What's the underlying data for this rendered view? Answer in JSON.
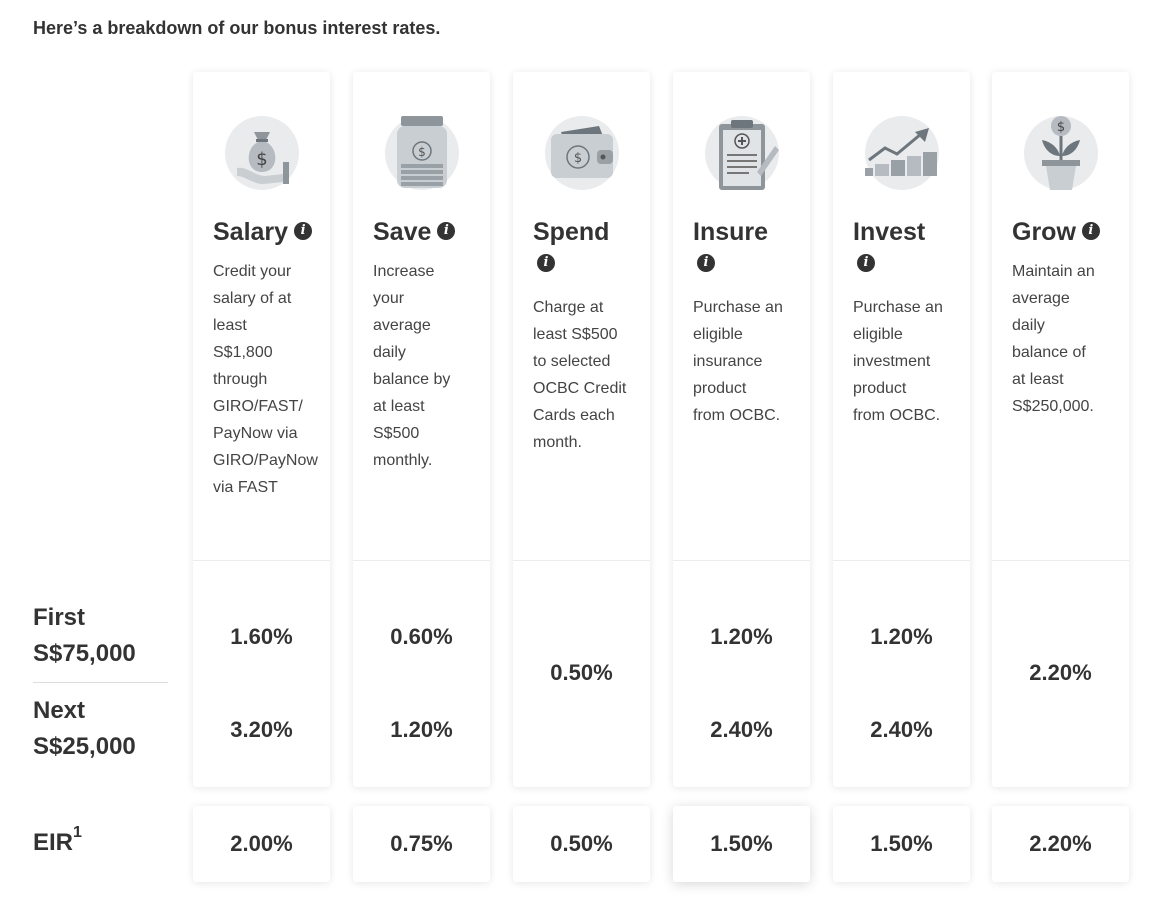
{
  "heading": "Here’s a breakdown of our bonus interest rates.",
  "tiers": {
    "first": {
      "line1": "First",
      "line2": "S$75,000"
    },
    "next": {
      "line1": "Next",
      "line2": "S$25,000"
    }
  },
  "eir": {
    "label": "EIR",
    "sup": "1"
  },
  "info_glyph": "i",
  "categories": [
    {
      "title": "Salary",
      "icon": "money-bag-hand-icon",
      "desc": [
        "Credit your",
        "salary of at",
        "least",
        "S$1,800",
        "through",
        "GIRO/FAST/",
        "PayNow via",
        "GIRO/PayNow",
        "via FAST"
      ],
      "first": "1.60%",
      "next": "3.20%",
      "eir": "2.00%"
    },
    {
      "title": "Save",
      "icon": "savings-jar-icon",
      "desc": [
        "Increase",
        "your",
        "average",
        "daily",
        "balance by",
        "at least",
        "S$500",
        "monthly."
      ],
      "first": "0.60%",
      "next": "1.20%",
      "eir": "0.75%"
    },
    {
      "title": "Spend",
      "icon": "wallet-icon",
      "desc": [
        "Charge at",
        "least S$500",
        "to selected",
        "OCBC Credit",
        "Cards each",
        "month."
      ],
      "combined": "0.50%",
      "eir": "0.50%"
    },
    {
      "title": "Insure",
      "icon": "clipboard-icon",
      "desc": [
        "Purchase an",
        "eligible",
        "insurance",
        "product",
        "from OCBC."
      ],
      "first": "1.20%",
      "next": "2.40%",
      "eir": "1.50%"
    },
    {
      "title": "Invest",
      "icon": "growth-chart-icon",
      "desc": [
        "Purchase an",
        "eligible",
        "investment",
        "product",
        "from OCBC."
      ],
      "first": "1.20%",
      "next": "2.40%",
      "eir": "1.50%"
    },
    {
      "title": "Grow",
      "icon": "money-plant-icon",
      "desc": [
        "Maintain an",
        "average",
        "daily",
        "balance of",
        "at least",
        "S$250,000."
      ],
      "combined": "2.20%",
      "eir": "2.20%"
    }
  ]
}
